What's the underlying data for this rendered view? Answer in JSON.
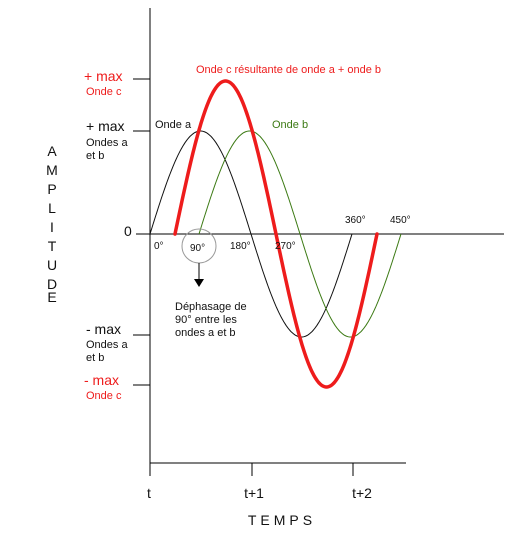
{
  "colors": {
    "axis": "#000000",
    "wave_a": "#111111",
    "wave_b": "#3c7a14",
    "wave_c": "#ee1c1c"
  },
  "diagram": {
    "y_axis_label": "AMPLITUDE",
    "x_axis_label": "TEMPS",
    "zero_label": "0",
    "y_labels": {
      "plus_max_c": "+ max",
      "plus_max_c_sub": "Onde c",
      "plus_max_ab": "+ max",
      "plus_max_ab_sub1": "Ondes a",
      "plus_max_ab_sub2": "et b",
      "minus_max_ab": "- max",
      "minus_max_ab_sub1": "Ondes a",
      "minus_max_ab_sub2": "et b",
      "minus_max_c": "- max",
      "minus_max_c_sub": "Onde c"
    },
    "wave_labels": {
      "a": "Onde a",
      "b": "Onde b",
      "c": "Onde c résultante de onde a + onde b"
    },
    "angle_labels": [
      "0°",
      "90°",
      "180°",
      "270°",
      "360°",
      "450°"
    ],
    "time_labels": [
      "t",
      "t+1",
      "t+2"
    ],
    "phase_note": [
      "Déphasage de",
      "90° entre les",
      "ondes a et b"
    ]
  }
}
